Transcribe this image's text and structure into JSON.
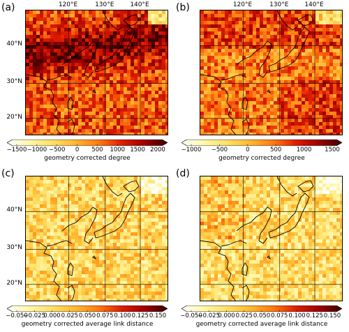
{
  "panels": [
    {
      "label": "(a)",
      "lon_labels": [
        "120°E",
        "130°E",
        "140°E"
      ],
      "lat_labels": [
        "40°N",
        "30°N",
        "20°N"
      ],
      "colorbar": {
        "ticks": [
          "−1500",
          "−1000",
          "−500",
          "0",
          "500",
          "1000",
          "1500",
          "2000"
        ],
        "label": "geometry corrected degree"
      },
      "intensity": 0.62
    },
    {
      "label": "(b)",
      "lon_labels": [
        "120°E",
        "130°E",
        "140°E"
      ],
      "lat_labels": [],
      "colorbar": {
        "ticks": [
          "−1000",
          "−500",
          "0",
          "500",
          "1000",
          "1500"
        ],
        "label": "geometry corrected degree"
      },
      "intensity": 0.55
    },
    {
      "label": "(c)",
      "lon_labels": [],
      "lat_labels": [
        "40°N",
        "30°N",
        "20°N"
      ],
      "colorbar": {
        "ticks": [
          "−0.050",
          "−0.025",
          "0.000",
          "0.025",
          "0.050",
          "0.075",
          "0.100",
          "0.125",
          "0.150"
        ],
        "label": "geometry corrected average link distance"
      },
      "intensity": 0.32
    },
    {
      "label": "(d)",
      "lon_labels": [],
      "lat_labels": [],
      "colorbar": {
        "ticks": [
          "−0.050",
          "−0.025",
          "0.000",
          "0.025",
          "0.050",
          "0.075",
          "0.100",
          "0.125",
          "0.150"
        ],
        "label": "geometry corrected average link distance"
      },
      "intensity": 0.3
    }
  ],
  "colors": {
    "cmap": [
      "#ffffff",
      "#fff7a8",
      "#ffe066",
      "#ffb830",
      "#ff7a10",
      "#e01e00",
      "#a00000",
      "#3a0000"
    ]
  }
}
